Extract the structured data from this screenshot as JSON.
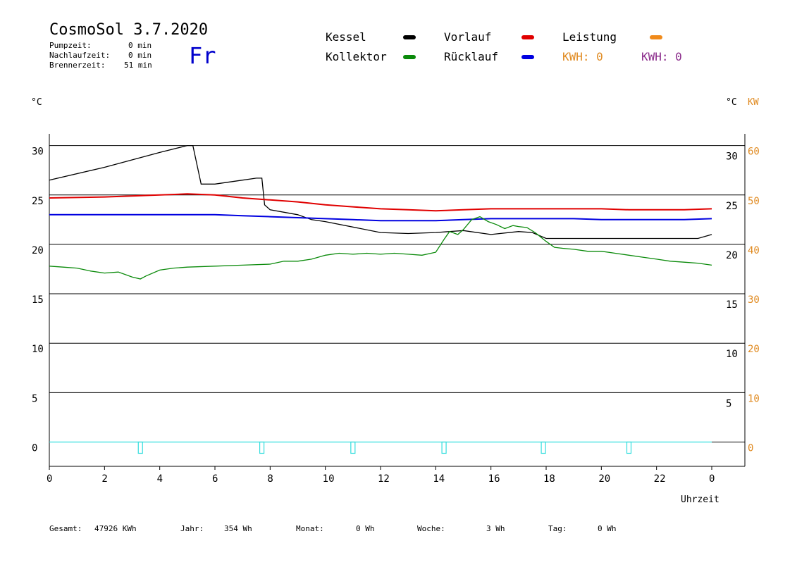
{
  "header": {
    "title": "CosmoSol 3.7.2020",
    "day": "Fr",
    "stats": [
      {
        "label": "Pumpzeit:",
        "value": "0 min"
      },
      {
        "label": "Nachlaufzeit:",
        "value": "0 min"
      },
      {
        "label": "Brennerzeit:",
        "value": "51 min"
      }
    ]
  },
  "legend": {
    "kessel": {
      "label": "Kessel",
      "color": "#000000"
    },
    "kollektor": {
      "label": "Kollektor",
      "color": "#0a8a0a"
    },
    "vorlauf": {
      "label": "Vorlauf",
      "color": "#e00000"
    },
    "ruecklauf": {
      "label": "Rücklauf",
      "color": "#0000e0"
    },
    "leistung": {
      "label": "Leistung",
      "color": "#f08a1a"
    },
    "kwh_orange": "KWH: 0",
    "kwh_purple": "KWH: 0",
    "kwh_orange_color": "#e08a20",
    "kwh_purple_color": "#8a2a8a"
  },
  "units": {
    "left": "°C",
    "right_c": "°C",
    "right_kw": "KW"
  },
  "xlabel": "Uhrzeit",
  "footer": [
    {
      "label": "Gesamt:",
      "value": "47926 KWh"
    },
    {
      "label": "Jahr:",
      "value": "354 Wh"
    },
    {
      "label": "Monat:",
      "value": "0 Wh"
    },
    {
      "label": "Woche:",
      "value": "3 Wh"
    },
    {
      "label": "Tag:",
      "value": "0 Wh"
    }
  ],
  "chart_data": {
    "type": "line",
    "xlabel": "Uhrzeit",
    "ylabel": "°C",
    "xlim": [
      0,
      24
    ],
    "ylim": [
      -2.5,
      31.2
    ],
    "x_ticks": [
      "0",
      "2",
      "4",
      "6",
      "8",
      "10",
      "12",
      "14",
      "16",
      "18",
      "20",
      "22",
      "0"
    ],
    "y_ticks_left": [
      "30",
      "25",
      "20",
      "15",
      "10",
      "5",
      "0"
    ],
    "y_ticks_right_c": [
      "30",
      "25",
      "20",
      "15",
      "10",
      "5"
    ],
    "y_ticks_right_kw": [
      "60",
      "50",
      "40",
      "30",
      "20",
      "10",
      "0"
    ],
    "grid": true,
    "series": [
      {
        "name": "Kessel",
        "color": "#000000",
        "x": [
          0,
          2,
          4,
          5,
          5.2,
          5.5,
          6,
          7,
          7.5,
          7.7,
          7.8,
          8,
          9,
          9.5,
          10,
          12,
          13,
          14,
          15,
          16,
          17,
          17.5,
          18,
          20,
          22,
          23.5,
          24
        ],
        "y": [
          26.5,
          27.8,
          29.3,
          30,
          30,
          26.1,
          26.1,
          26.5,
          26.7,
          26.7,
          24,
          23.5,
          23,
          22.5,
          22.3,
          21.2,
          21.1,
          21.2,
          21.4,
          21,
          21.3,
          21.2,
          20.6,
          20.6,
          20.6,
          20.6,
          21.0
        ]
      },
      {
        "name": "Vorlauf",
        "color": "#e00000",
        "x": [
          0,
          2,
          4,
          5,
          6,
          7,
          8,
          9,
          10,
          11,
          12,
          13,
          14,
          15,
          16,
          17,
          18,
          19,
          20,
          21,
          22,
          23,
          24
        ],
        "y": [
          24.7,
          24.8,
          25.0,
          25.1,
          25.0,
          24.7,
          24.5,
          24.3,
          24.0,
          23.8,
          23.6,
          23.5,
          23.4,
          23.5,
          23.6,
          23.6,
          23.6,
          23.6,
          23.6,
          23.5,
          23.5,
          23.5,
          23.6
        ]
      },
      {
        "name": "Rücklauf",
        "color": "#0000e0",
        "x": [
          0,
          2,
          4,
          6,
          7,
          8,
          9,
          10,
          11,
          12,
          13,
          14,
          15,
          16,
          17,
          18,
          19,
          20,
          21,
          22,
          23,
          24
        ],
        "y": [
          23.0,
          23.0,
          23.0,
          23.0,
          22.9,
          22.8,
          22.7,
          22.6,
          22.5,
          22.4,
          22.4,
          22.4,
          22.5,
          22.6,
          22.6,
          22.6,
          22.6,
          22.5,
          22.5,
          22.5,
          22.5,
          22.6
        ]
      },
      {
        "name": "Kollektor",
        "color": "#0a8a0a",
        "x": [
          0,
          0.5,
          1,
          1.5,
          2,
          2.5,
          3,
          3.3,
          3.5,
          4,
          4.5,
          5,
          6,
          7,
          8,
          8.5,
          9,
          9.5,
          10,
          10.5,
          11,
          11.5,
          12,
          12.5,
          13,
          13.5,
          14,
          14.3,
          14.5,
          14.8,
          15,
          15.3,
          15.6,
          15.9,
          16.2,
          16.5,
          16.8,
          17,
          17.3,
          17.6,
          18,
          18.3,
          18.6,
          19,
          19.5,
          20,
          20.5,
          21,
          21.5,
          22,
          22.5,
          23,
          23.5,
          24
        ],
        "y": [
          17.8,
          17.7,
          17.6,
          17.3,
          17.1,
          17.2,
          16.7,
          16.5,
          16.8,
          17.4,
          17.6,
          17.7,
          17.8,
          17.9,
          18.0,
          18.3,
          18.3,
          18.5,
          18.9,
          19.1,
          19.0,
          19.1,
          19.0,
          19.1,
          19.0,
          18.9,
          19.2,
          20.5,
          21.3,
          21.0,
          21.5,
          22.5,
          22.8,
          22.3,
          22.0,
          21.6,
          21.9,
          21.8,
          21.7,
          21.2,
          20.3,
          19.7,
          19.6,
          19.5,
          19.3,
          19.3,
          19.1,
          18.9,
          18.7,
          18.5,
          18.3,
          18.2,
          18.1,
          17.9
        ]
      }
    ],
    "pump_markers_x": [
      3.3,
      7.7,
      11,
      14.3,
      17.9,
      21
    ]
  }
}
